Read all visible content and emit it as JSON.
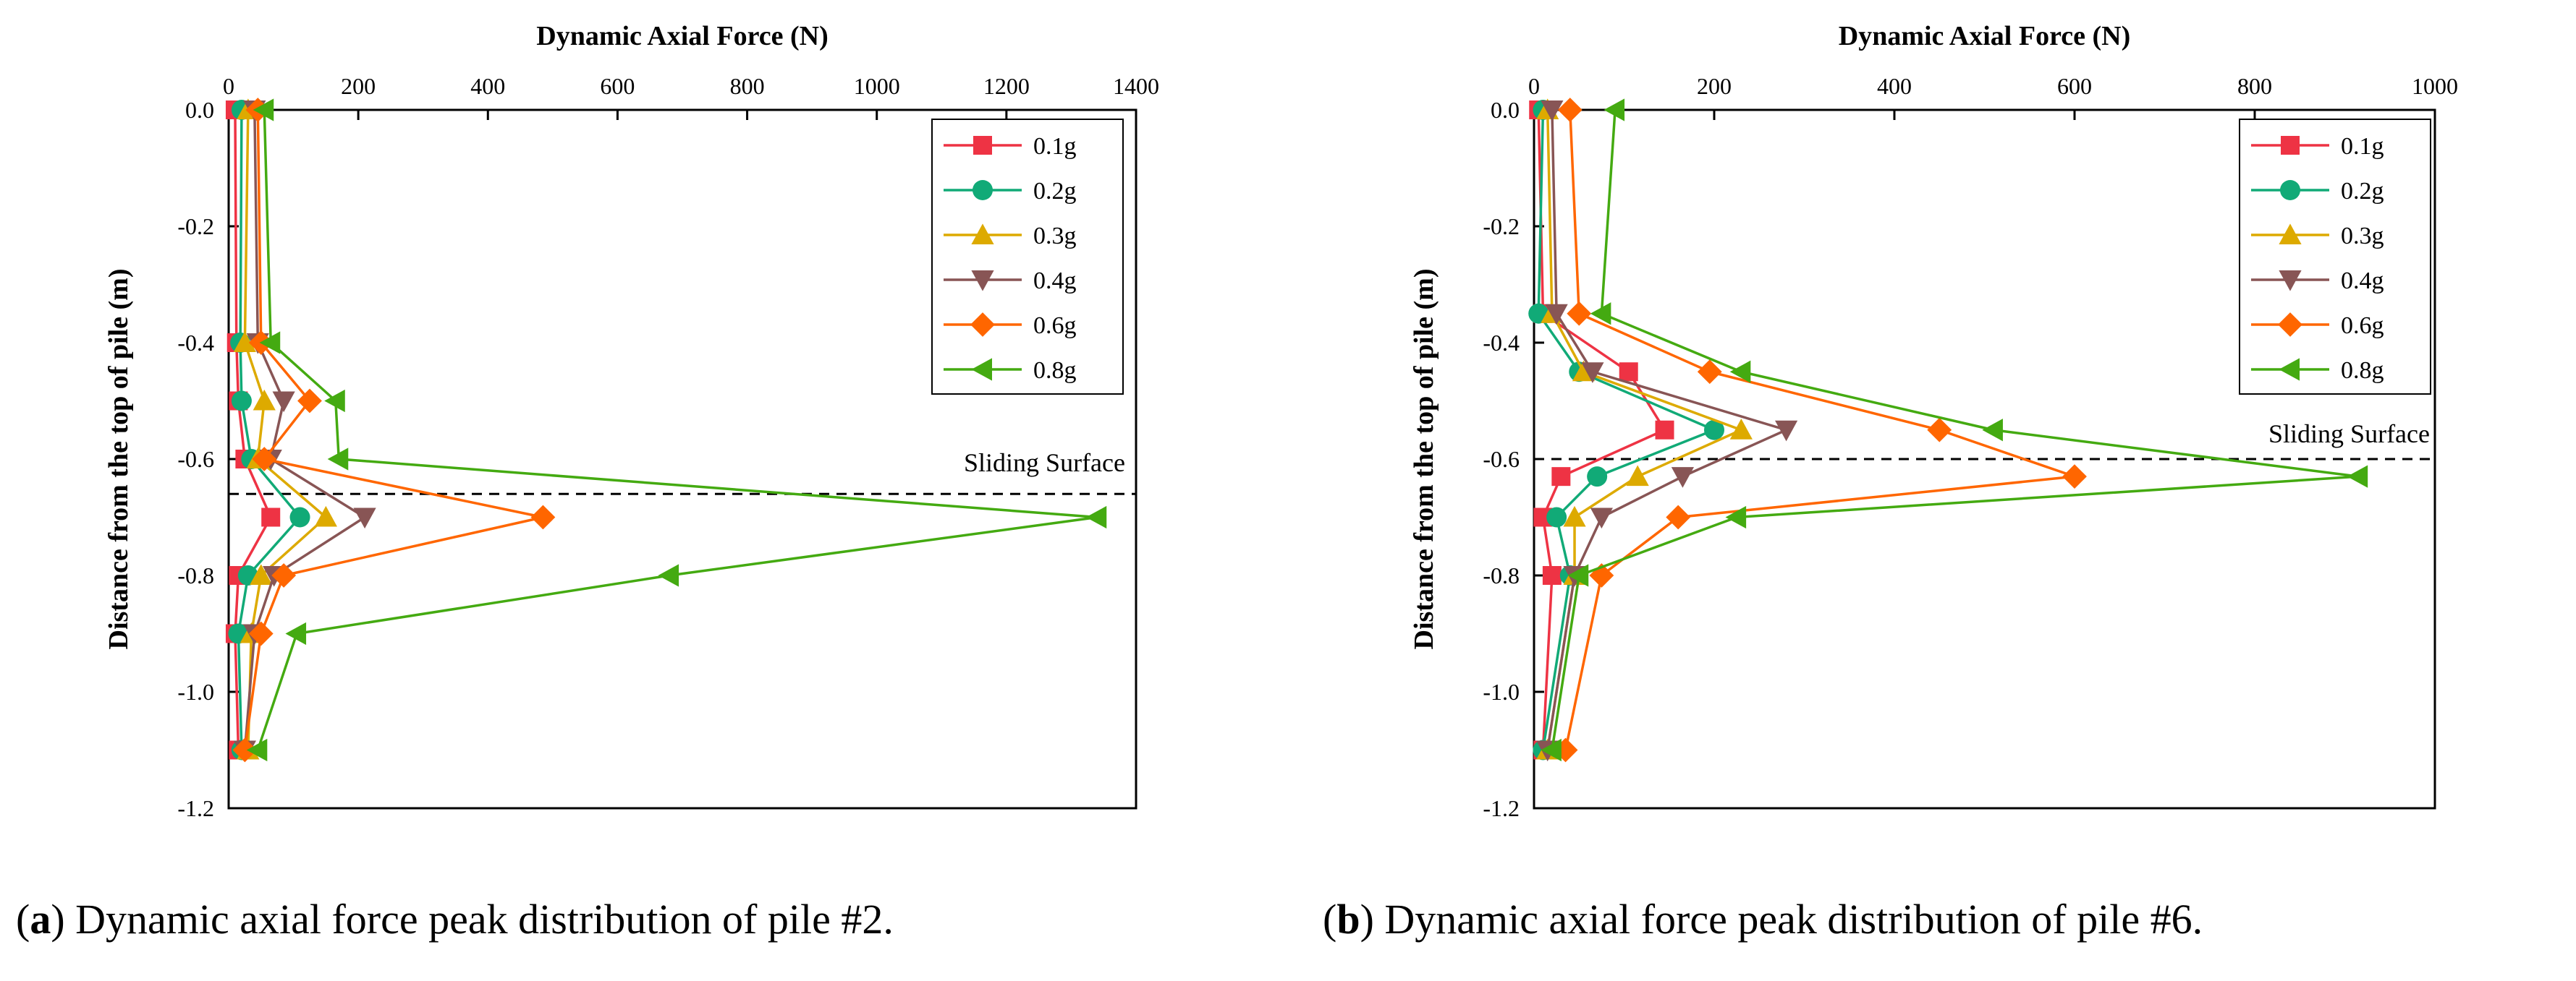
{
  "colors": {
    "0.1g": "#ee3344",
    "0.2g": "#11aa77",
    "0.3g": "#ddaa00",
    "0.4g": "#885555",
    "0.6g": "#ff6600",
    "0.8g": "#44aa11"
  },
  "chart_data": [
    {
      "type": "line",
      "panel": "a",
      "title": "",
      "xlabel": "Dynamic Axial Force (N)",
      "ylabel": "Distance from the top of pile (m)",
      "xlim": [
        0,
        1400
      ],
      "ylim": [
        -1.2,
        0.0
      ],
      "xticks": [
        0,
        200,
        400,
        600,
        800,
        1000,
        1200,
        1400
      ],
      "xtick_labels": [
        "0",
        "200",
        "400",
        "600",
        "800",
        "1000",
        "1200",
        "1400"
      ],
      "yticks": [
        0.0,
        -0.2,
        -0.4,
        -0.6,
        -0.8,
        -1.0,
        -1.2
      ],
      "ytick_labels": [
        "0.0",
        "-0.2",
        "-0.4",
        "-0.6",
        "-0.8",
        "-1.0",
        "-1.2"
      ],
      "legend_position": "top-right",
      "reference_line": {
        "y": -0.66,
        "label": "Sliding Surface",
        "style": "dashed"
      },
      "series": [
        {
          "name": "0.1g",
          "marker": "square",
          "points": [
            [
              10,
              0.0
            ],
            [
              12,
              -0.4
            ],
            [
              15,
              -0.5
            ],
            [
              25,
              -0.6
            ],
            [
              65,
              -0.7
            ],
            [
              15,
              -0.8
            ],
            [
              10,
              -0.9
            ],
            [
              15,
              -1.1
            ]
          ]
        },
        {
          "name": "0.2g",
          "marker": "circle",
          "points": [
            [
              20,
              0.0
            ],
            [
              18,
              -0.4
            ],
            [
              20,
              -0.5
            ],
            [
              35,
              -0.6
            ],
            [
              110,
              -0.7
            ],
            [
              30,
              -0.8
            ],
            [
              15,
              -0.9
            ],
            [
              20,
              -1.1
            ]
          ]
        },
        {
          "name": "0.3g",
          "marker": "triangle-up",
          "points": [
            [
              30,
              0.0
            ],
            [
              25,
              -0.4
            ],
            [
              55,
              -0.5
            ],
            [
              45,
              -0.6
            ],
            [
              150,
              -0.7
            ],
            [
              50,
              -0.8
            ],
            [
              35,
              -0.9
            ],
            [
              30,
              -1.1
            ]
          ]
        },
        {
          "name": "0.4g",
          "marker": "triangle-down",
          "points": [
            [
              40,
              0.0
            ],
            [
              45,
              -0.4
            ],
            [
              85,
              -0.5
            ],
            [
              65,
              -0.6
            ],
            [
              210,
              -0.7
            ],
            [
              70,
              -0.8
            ],
            [
              40,
              -0.9
            ],
            [
              25,
              -1.1
            ]
          ]
        },
        {
          "name": "0.6g",
          "marker": "diamond",
          "points": [
            [
              45,
              0.0
            ],
            [
              50,
              -0.4
            ],
            [
              125,
              -0.5
            ],
            [
              55,
              -0.6
            ],
            [
              485,
              -0.7
            ],
            [
              85,
              -0.8
            ],
            [
              50,
              -0.9
            ],
            [
              25,
              -1.1
            ]
          ]
        },
        {
          "name": "0.8g",
          "marker": "triangle-left",
          "points": [
            [
              55,
              0.0
            ],
            [
              65,
              -0.4
            ],
            [
              165,
              -0.5
            ],
            [
              170,
              -0.6
            ],
            [
              1340,
              -0.7
            ],
            [
              680,
              -0.8
            ],
            [
              105,
              -0.9
            ],
            [
              45,
              -1.1
            ]
          ]
        }
      ]
    },
    {
      "type": "line",
      "panel": "b",
      "title": "",
      "xlabel": "Dynamic Axial Force (N)",
      "ylabel": "Distance from the top of pile (m)",
      "xlim": [
        0,
        1000
      ],
      "ylim": [
        -1.2,
        0.0
      ],
      "xticks": [
        0,
        200,
        400,
        600,
        800,
        1000
      ],
      "xtick_labels": [
        "0",
        "200",
        "400",
        "600",
        "800",
        "1000"
      ],
      "yticks": [
        0.0,
        -0.2,
        -0.4,
        -0.6,
        -0.8,
        -1.0,
        -1.2
      ],
      "ytick_labels": [
        "0.0",
        "-0.2",
        "-0.4",
        "-0.6",
        "-0.8",
        "-1.0",
        "-1.2"
      ],
      "legend_position": "top-right",
      "reference_line": {
        "y": -0.6,
        "label": "Sliding Surface",
        "style": "dashed"
      },
      "series": [
        {
          "name": "0.1g",
          "marker": "square",
          "points": [
            [
              5,
              0.0
            ],
            [
              10,
              -0.35
            ],
            [
              105,
              -0.45
            ],
            [
              145,
              -0.55
            ],
            [
              30,
              -0.63
            ],
            [
              10,
              -0.7
            ],
            [
              20,
              -0.8
            ],
            [
              10,
              -1.1
            ]
          ]
        },
        {
          "name": "0.2g",
          "marker": "circle",
          "points": [
            [
              10,
              0.0
            ],
            [
              5,
              -0.35
            ],
            [
              50,
              -0.45
            ],
            [
              200,
              -0.55
            ],
            [
              70,
              -0.63
            ],
            [
              25,
              -0.7
            ],
            [
              40,
              -0.8
            ],
            [
              10,
              -1.1
            ]
          ]
        },
        {
          "name": "0.3g",
          "marker": "triangle-up",
          "points": [
            [
              15,
              0.0
            ],
            [
              20,
              -0.35
            ],
            [
              55,
              -0.45
            ],
            [
              230,
              -0.55
            ],
            [
              115,
              -0.63
            ],
            [
              45,
              -0.7
            ],
            [
              45,
              -0.8
            ],
            [
              15,
              -1.1
            ]
          ]
        },
        {
          "name": "0.4g",
          "marker": "triangle-down",
          "points": [
            [
              20,
              0.0
            ],
            [
              25,
              -0.35
            ],
            [
              65,
              -0.45
            ],
            [
              280,
              -0.55
            ],
            [
              165,
              -0.63
            ],
            [
              75,
              -0.7
            ],
            [
              45,
              -0.8
            ],
            [
              15,
              -1.1
            ]
          ]
        },
        {
          "name": "0.6g",
          "marker": "diamond",
          "points": [
            [
              40,
              0.0
            ],
            [
              50,
              -0.35
            ],
            [
              195,
              -0.45
            ],
            [
              450,
              -0.55
            ],
            [
              600,
              -0.63
            ],
            [
              160,
              -0.7
            ],
            [
              75,
              -0.8
            ],
            [
              35,
              -1.1
            ]
          ]
        },
        {
          "name": "0.8g",
          "marker": "triangle-left",
          "points": [
            [
              90,
              0.0
            ],
            [
              75,
              -0.35
            ],
            [
              230,
              -0.45
            ],
            [
              510,
              -0.55
            ],
            [
              915,
              -0.63
            ],
            [
              225,
              -0.7
            ],
            [
              50,
              -0.8
            ],
            [
              20,
              -1.1
            ]
          ]
        }
      ]
    }
  ],
  "captions": {
    "a": {
      "letter": "a",
      "text": "Dynamic axial force peak distribution of pile #2."
    },
    "b": {
      "letter": "b",
      "text": "Dynamic axial force peak distribution of pile #6."
    }
  }
}
